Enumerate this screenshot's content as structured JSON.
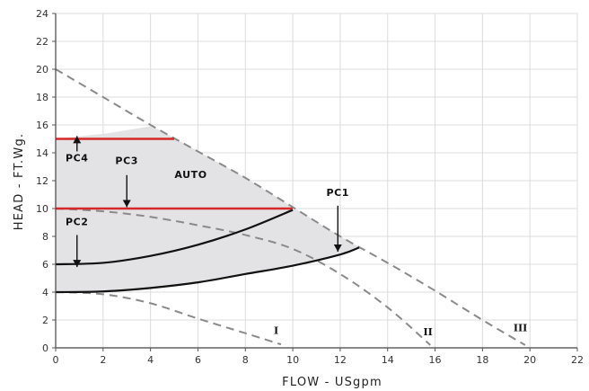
{
  "chart_data": {
    "type": "line",
    "xlabel": "FLOW - USgpm",
    "ylabel": "HEAD - FT.Wg.",
    "xlim": [
      0,
      22
    ],
    "ylim": [
      0,
      24
    ],
    "x_ticks": [
      "0",
      "2",
      "4",
      "6",
      "8",
      "10",
      "12",
      "14",
      "16",
      "18",
      "20",
      "22"
    ],
    "y_ticks": [
      "0",
      "2",
      "4",
      "6",
      "8",
      "10",
      "12",
      "14",
      "16",
      "18",
      "20",
      "22",
      "24"
    ],
    "grid": true,
    "legend": "none",
    "colors": {
      "max_speed_curves": "#8a8a8a",
      "constant_pressure": "#d62828",
      "proportional_pressure": "#111111",
      "auto_region": "#e3e3e5"
    },
    "series": [
      {
        "name": "I",
        "style": "dashed",
        "x": [
          0,
          2,
          4,
          6,
          8,
          9.5
        ],
        "y": [
          4.0,
          3.85,
          3.2,
          2.1,
          1.05,
          0.25
        ]
      },
      {
        "name": "II",
        "style": "dashed",
        "x": [
          0,
          2,
          4,
          6,
          8,
          10,
          12,
          14,
          15.8
        ],
        "y": [
          10.0,
          9.8,
          9.4,
          8.8,
          8.1,
          7.1,
          5.3,
          2.9,
          0.2
        ]
      },
      {
        "name": "III",
        "style": "dashed",
        "x": [
          0,
          2,
          4,
          6,
          8,
          10,
          12,
          14,
          16,
          18,
          19.8
        ],
        "y": [
          20.0,
          18.0,
          16.0,
          14.1,
          12.2,
          10.1,
          8.0,
          6.1,
          4.1,
          2.0,
          0.2
        ]
      },
      {
        "name": "PC1",
        "style": "solid",
        "x": [
          0,
          2,
          4,
          6,
          8,
          10,
          12,
          12.8
        ],
        "y": [
          4.0,
          4.05,
          4.3,
          4.7,
          5.3,
          5.9,
          6.7,
          7.2
        ]
      },
      {
        "name": "PC2",
        "style": "solid",
        "x": [
          0,
          2,
          4,
          6,
          8,
          10
        ],
        "y": [
          6.0,
          6.1,
          6.6,
          7.4,
          8.5,
          9.9
        ]
      },
      {
        "name": "PC3",
        "style": "solid",
        "x": [
          0,
          10
        ],
        "y": [
          10,
          10
        ]
      },
      {
        "name": "PC4",
        "style": "solid",
        "x": [
          0,
          5
        ],
        "y": [
          15,
          15
        ]
      }
    ],
    "annotations": [
      {
        "text": "PC4",
        "x": 0.9,
        "y": 13.4,
        "arrow_from": [
          0.9,
          14.1
        ],
        "arrow_to": [
          0.9,
          15.2
        ]
      },
      {
        "text": "PC3",
        "x": 3.0,
        "y": 13.2,
        "arrow_from": [
          3.0,
          12.4
        ],
        "arrow_to": [
          3.0,
          10.1
        ]
      },
      {
        "text": "PC2",
        "x": 0.9,
        "y": 8.8,
        "arrow_from": [
          0.9,
          8.1
        ],
        "arrow_to": [
          0.9,
          5.8
        ]
      },
      {
        "text": "PC1",
        "x": 11.9,
        "y": 10.9,
        "arrow_from": [
          11.9,
          10.2
        ],
        "arrow_to": [
          11.9,
          6.9
        ]
      },
      {
        "text": "AUTO",
        "x": 5.7,
        "y": 12.2
      },
      {
        "text": "I",
        "x": 9.3,
        "y": 1.0
      },
      {
        "text": "II",
        "x": 15.7,
        "y": 0.9
      },
      {
        "text": "III",
        "x": 19.6,
        "y": 1.2
      }
    ]
  }
}
